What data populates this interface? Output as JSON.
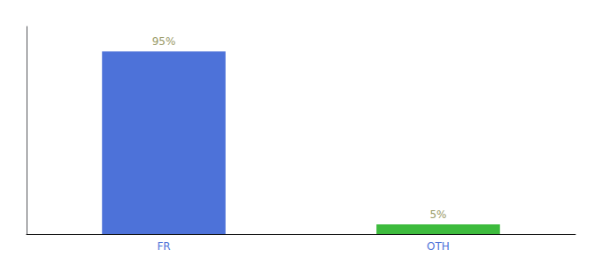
{
  "chart_data": {
    "type": "bar",
    "categories": [
      "FR",
      "OTH"
    ],
    "values": [
      95,
      5
    ],
    "value_labels": [
      "95%",
      "5%"
    ],
    "colors": [
      "#4d72d9",
      "#3dbb3d"
    ],
    "ylim": [
      0,
      108
    ],
    "tick_labels": "x",
    "grid": false,
    "data_labels": true
  }
}
